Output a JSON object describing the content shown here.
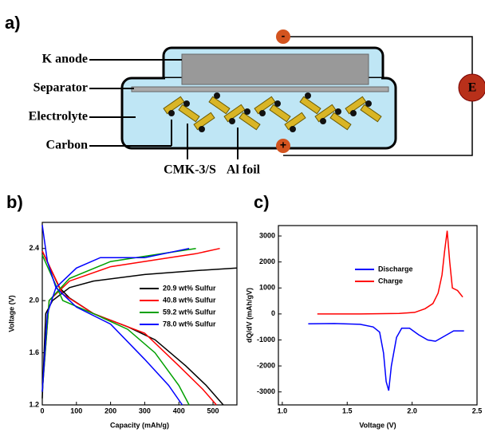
{
  "diagram": {
    "label": "a)",
    "parts": [
      "K anode",
      "Separator",
      "Electrolyte",
      "Carbon"
    ],
    "bottom_labels": [
      "CMK-3/S",
      "Al foil"
    ],
    "terminals": [
      "-",
      "+",
      "E"
    ]
  },
  "chart_data": [
    {
      "label": "b)",
      "type": "line",
      "xlabel": "Capacity (mAh/g)",
      "ylabel": "Voltage (V)",
      "xlim": [
        0,
        570
      ],
      "ylim": [
        1.2,
        2.6
      ],
      "xticks": [
        0,
        100,
        200,
        300,
        400,
        500
      ],
      "yticks": [
        1.2,
        1.6,
        {
          "value": 2,
          "label": "2.0"
        },
        2.4
      ],
      "legend": "right",
      "series": [
        {
          "name": "20.9 wt% Sulfur",
          "color": "#000000",
          "x": [
            0,
            50,
            80,
            150,
            250,
            330,
            420,
            480,
            530,
            null,
            0,
            10,
            30,
            80,
            150,
            300,
            450,
            570
          ],
          "values": [
            2.38,
            2.1,
            2.02,
            1.9,
            1.8,
            1.7,
            1.5,
            1.35,
            1.2,
            null,
            1.25,
            1.9,
            2.0,
            2.1,
            2.15,
            2.2,
            2.23,
            2.25
          ]
        },
        {
          "name": "40.8 wt% Sulfur",
          "color": "#ff0000",
          "x": [
            0,
            60,
            150,
            250,
            300,
            400,
            470,
            510,
            null,
            0,
            20,
            80,
            200,
            350,
            450,
            520
          ],
          "values": [
            2.38,
            2.05,
            1.9,
            1.8,
            1.75,
            1.5,
            1.32,
            1.2,
            null,
            1.3,
            2.0,
            2.15,
            2.26,
            2.32,
            2.36,
            2.4
          ]
        },
        {
          "name": "59.2 wt% Sulfur",
          "color": "#00a000",
          "x": [
            0,
            60,
            150,
            250,
            330,
            400,
            430,
            null,
            0,
            20,
            80,
            200,
            350,
            450
          ],
          "values": [
            2.35,
            2.0,
            1.9,
            1.78,
            1.6,
            1.35,
            1.2,
            null,
            1.3,
            2.0,
            2.17,
            2.3,
            2.36,
            2.4
          ]
        },
        {
          "name": "78.0 wt% Sulfur",
          "color": "#0000ff",
          "x": [
            0,
            15,
            40,
            100,
            200,
            300,
            370,
            410,
            null,
            0,
            15,
            40,
            100,
            170,
            300,
            430
          ],
          "values": [
            2.58,
            2.3,
            2.1,
            1.95,
            1.82,
            1.55,
            1.35,
            1.2,
            null,
            1.3,
            1.9,
            2.1,
            2.25,
            2.33,
            2.33,
            2.4
          ]
        }
      ]
    },
    {
      "label": "c)",
      "type": "line",
      "xlabel": "Voltage (V)",
      "ylabel": "dQ/dV (mAh/gV)",
      "xlim": [
        0.97,
        2.5
      ],
      "ylim": [
        -3500,
        3400
      ],
      "xticks": [
        {
          "value": 1,
          "label": "1.0"
        },
        1.5,
        {
          "value": 2,
          "label": "2.0"
        },
        2.5
      ],
      "yticks": [
        -3000,
        -2000,
        -1000,
        0,
        1000,
        2000,
        3000
      ],
      "legend": "center",
      "series": [
        {
          "name": "Discharge",
          "color": "#0000ff",
          "x": [
            1.2,
            1.4,
            1.6,
            1.7,
            1.75,
            1.78,
            1.8,
            1.82,
            1.84,
            1.88,
            1.92,
            1.98,
            2.05,
            2.12,
            2.18,
            2.25,
            2.32,
            2.4
          ],
          "values": [
            -380,
            -370,
            -400,
            -500,
            -700,
            -1500,
            -2600,
            -2950,
            -2000,
            -900,
            -550,
            -550,
            -800,
            -1000,
            -1050,
            -850,
            -650,
            -650
          ]
        },
        {
          "name": "Charge",
          "color": "#ff0000",
          "x": [
            1.27,
            1.6,
            1.9,
            2.02,
            2.1,
            2.16,
            2.2,
            2.23,
            2.25,
            2.27,
            2.29,
            2.31,
            2.35,
            2.39
          ],
          "values": [
            0,
            0,
            20,
            60,
            200,
            400,
            800,
            1500,
            2400,
            3200,
            2000,
            1000,
            900,
            650
          ]
        }
      ]
    }
  ]
}
